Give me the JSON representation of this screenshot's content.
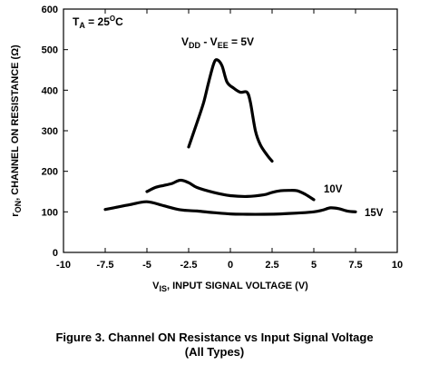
{
  "chart_data": {
    "type": "line",
    "xlim": [
      -10,
      10
    ],
    "ylim": [
      0,
      600
    ],
    "x_ticks": [
      -10,
      -7.5,
      -5,
      -2.5,
      0,
      2.5,
      5,
      7.5,
      10
    ],
    "x_tick_labels": [
      "-10",
      "-7.5",
      "-5",
      "-2.5",
      "0",
      "2.5",
      "5",
      "7.5",
      "10"
    ],
    "y_ticks": [
      0,
      100,
      200,
      300,
      400,
      500,
      600
    ],
    "y_tick_labels": [
      "0",
      "100",
      "200",
      "300",
      "400",
      "500",
      "600"
    ],
    "grid": false,
    "xlabel": {
      "main": "V",
      "sub": "IS",
      "rest": ", INPUT SIGNAL VOLTAGE (V)"
    },
    "ylabel": {
      "main": "r",
      "sub": "ON",
      "rest": ", CHANNEL ON RESISTANCE (Ω)"
    },
    "ambient": {
      "text": "T",
      "sub": "A",
      "rest": " = 25",
      "sup": "O",
      "unit": "C"
    },
    "supply_label": {
      "a": "V",
      "a_sub": "DD",
      "mid": " - V",
      "b_sub": "EE",
      "rest": " = 5V"
    },
    "series": [
      {
        "name": "5V",
        "x": [
          -2.5,
          -2.0,
          -1.6,
          -1.3,
          -1.0,
          -0.8,
          -0.5,
          -0.2,
          0.2,
          0.6,
          1.0,
          1.2,
          1.5,
          1.8,
          2.2,
          2.5
        ],
        "y": [
          260,
          320,
          370,
          420,
          465,
          475,
          460,
          420,
          405,
          395,
          395,
          370,
          300,
          265,
          240,
          225
        ]
      },
      {
        "name": "10V",
        "x": [
          -5,
          -4.5,
          -4,
          -3.5,
          -3,
          -2.5,
          -2,
          -1,
          0,
          1,
          2,
          2.5,
          3,
          3.5,
          4,
          4.5,
          5
        ],
        "y": [
          150,
          160,
          165,
          170,
          178,
          172,
          160,
          148,
          140,
          138,
          142,
          148,
          152,
          153,
          152,
          143,
          130
        ]
      },
      {
        "name": "15V",
        "x": [
          -7.5,
          -7,
          -6,
          -5,
          -4,
          -3,
          -2,
          -1,
          0,
          1,
          2,
          3,
          4,
          5,
          5.5,
          6,
          6.5,
          7,
          7.5
        ],
        "y": [
          106,
          110,
          118,
          125,
          115,
          105,
          102,
          98,
          95,
          94,
          94,
          95,
          97,
          100,
          104,
          110,
          108,
          102,
          100
        ]
      }
    ]
  },
  "caption": {
    "line1": "Figure 3. Channel ON Resistance vs Input Signal Voltage",
    "line2": "(All Types)"
  }
}
